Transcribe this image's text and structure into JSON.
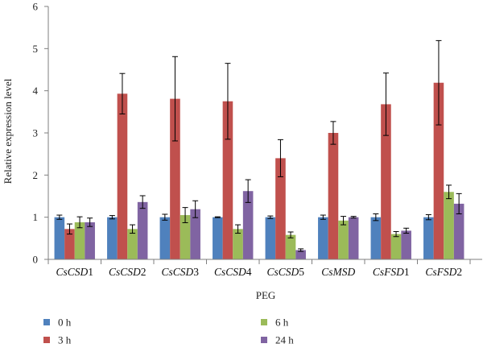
{
  "chart_data": {
    "type": "bar",
    "title": "",
    "xlabel": "PEG",
    "ylabel": "Relative expression level",
    "ylim": [
      0,
      6
    ],
    "yticks": [
      0,
      1,
      2,
      3,
      4,
      5,
      6
    ],
    "grid": false,
    "legend_position": "bottom",
    "categories": [
      {
        "prefix": "Cs",
        "suffix": "CSD1"
      },
      {
        "prefix": "Cs",
        "suffix": "CSD2"
      },
      {
        "prefix": "Cs",
        "suffix": "CSD3"
      },
      {
        "prefix": "Cs",
        "suffix": "CSD4"
      },
      {
        "prefix": "Cs",
        "suffix": "CSD5"
      },
      {
        "prefix": "Cs",
        "suffix": "MSD"
      },
      {
        "prefix": "Cs",
        "suffix": "FSD1"
      },
      {
        "prefix": "Cs",
        "suffix": "FSD2"
      }
    ],
    "series": [
      {
        "name": "0 h",
        "color": "#4f81bd",
        "values": [
          1.0,
          1.0,
          1.0,
          1.0,
          1.0,
          1.0,
          1.0,
          1.0
        ],
        "errors": [
          0.05,
          0.04,
          0.07,
          0.01,
          0.03,
          0.05,
          0.08,
          0.06
        ]
      },
      {
        "name": "3 h",
        "color": "#c0504d",
        "values": [
          0.72,
          3.93,
          3.81,
          3.75,
          2.4,
          3.0,
          3.68,
          4.19
        ],
        "errors": [
          0.12,
          0.48,
          1.0,
          0.9,
          0.44,
          0.27,
          0.74,
          1.0
        ]
      },
      {
        "name": "6 h",
        "color": "#9bbb59",
        "values": [
          0.88,
          0.72,
          1.05,
          0.72,
          0.58,
          0.92,
          0.6,
          1.6
        ],
        "errors": [
          0.13,
          0.1,
          0.18,
          0.1,
          0.07,
          0.1,
          0.06,
          0.16
        ]
      },
      {
        "name": "24 h",
        "color": "#8064a2",
        "values": [
          0.88,
          1.36,
          1.19,
          1.62,
          0.22,
          1.0,
          0.68,
          1.32
        ],
        "errors": [
          0.1,
          0.15,
          0.2,
          0.27,
          0.03,
          0.02,
          0.06,
          0.24
        ]
      }
    ]
  }
}
